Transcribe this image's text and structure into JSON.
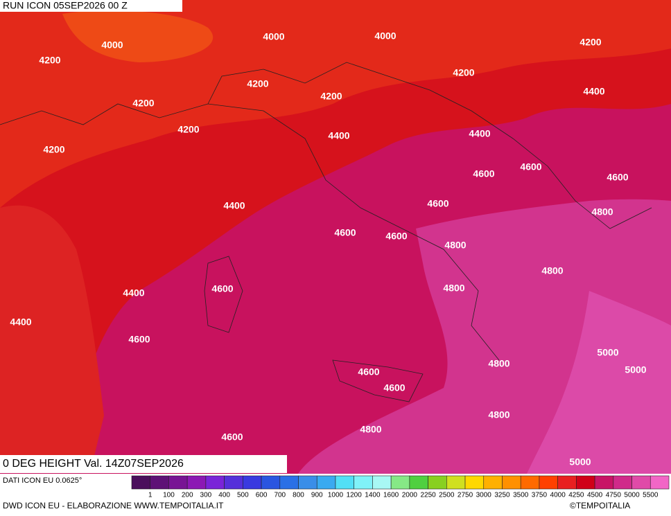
{
  "header": {
    "title": "RUN ICON 05SEP2026 00 Z"
  },
  "map": {
    "field_title": "0 DEG HEIGHT Val. 14Z07SEP2026",
    "contour_labels": [
      4000,
      4000,
      4000,
      4200,
      4200,
      4200,
      4200,
      4200,
      4200,
      4400,
      4200,
      4400,
      4400,
      4200,
      4600,
      4600,
      4600,
      4400,
      4600,
      4800,
      4600,
      4600,
      4800,
      4800,
      4600,
      4400,
      4800,
      4400,
      4600,
      4800,
      5000,
      5000,
      4600,
      4600,
      4800,
      4800,
      4600,
      5000
    ]
  },
  "legend": {
    "source": "DATI ICON EU 0.0625°",
    "ticks": [
      "1",
      "100",
      "200",
      "300",
      "400",
      "500",
      "600",
      "700",
      "800",
      "900",
      "1000",
      "1200",
      "1400",
      "1600",
      "2000",
      "2250",
      "2500",
      "2750",
      "3000",
      "3250",
      "3500",
      "3750",
      "4000",
      "4250",
      "4500",
      "4750",
      "5000",
      "5500"
    ]
  },
  "footer": {
    "credit": "DWD ICON EU - ELABORAZIONE WWW.TEMPOITALIA.IT",
    "copyright": "©TEMPOITALIA"
  }
}
